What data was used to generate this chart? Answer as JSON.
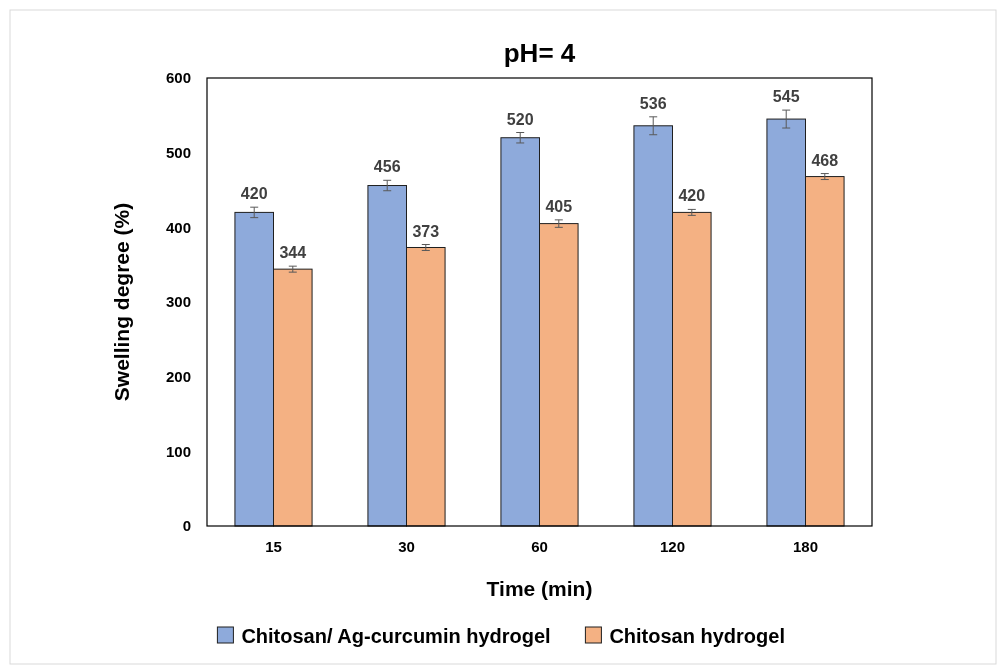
{
  "chart_data": {
    "type": "bar",
    "title": "pH= 4",
    "xlabel": "Time (min)",
    "ylabel": "Swelling degree (%)",
    "categories": [
      "15",
      "30",
      "60",
      "120",
      "180"
    ],
    "series": [
      {
        "name": "Chitosan/ Ag-curcumin hydrogel",
        "color": "#8eaadb",
        "values": [
          420,
          456,
          520,
          536,
          545
        ],
        "errors": [
          7,
          7,
          7,
          12,
          12
        ]
      },
      {
        "name": "Chitosan hydrogel",
        "color": "#f4b183",
        "values": [
          344,
          373,
          405,
          420,
          468
        ],
        "errors": [
          4,
          4,
          5,
          4,
          4
        ]
      }
    ],
    "ylim": [
      0,
      600
    ],
    "yticks": [
      0,
      100,
      200,
      300,
      400,
      500,
      600
    ],
    "grid": false,
    "legend": "bottom",
    "data_labels": true
  }
}
